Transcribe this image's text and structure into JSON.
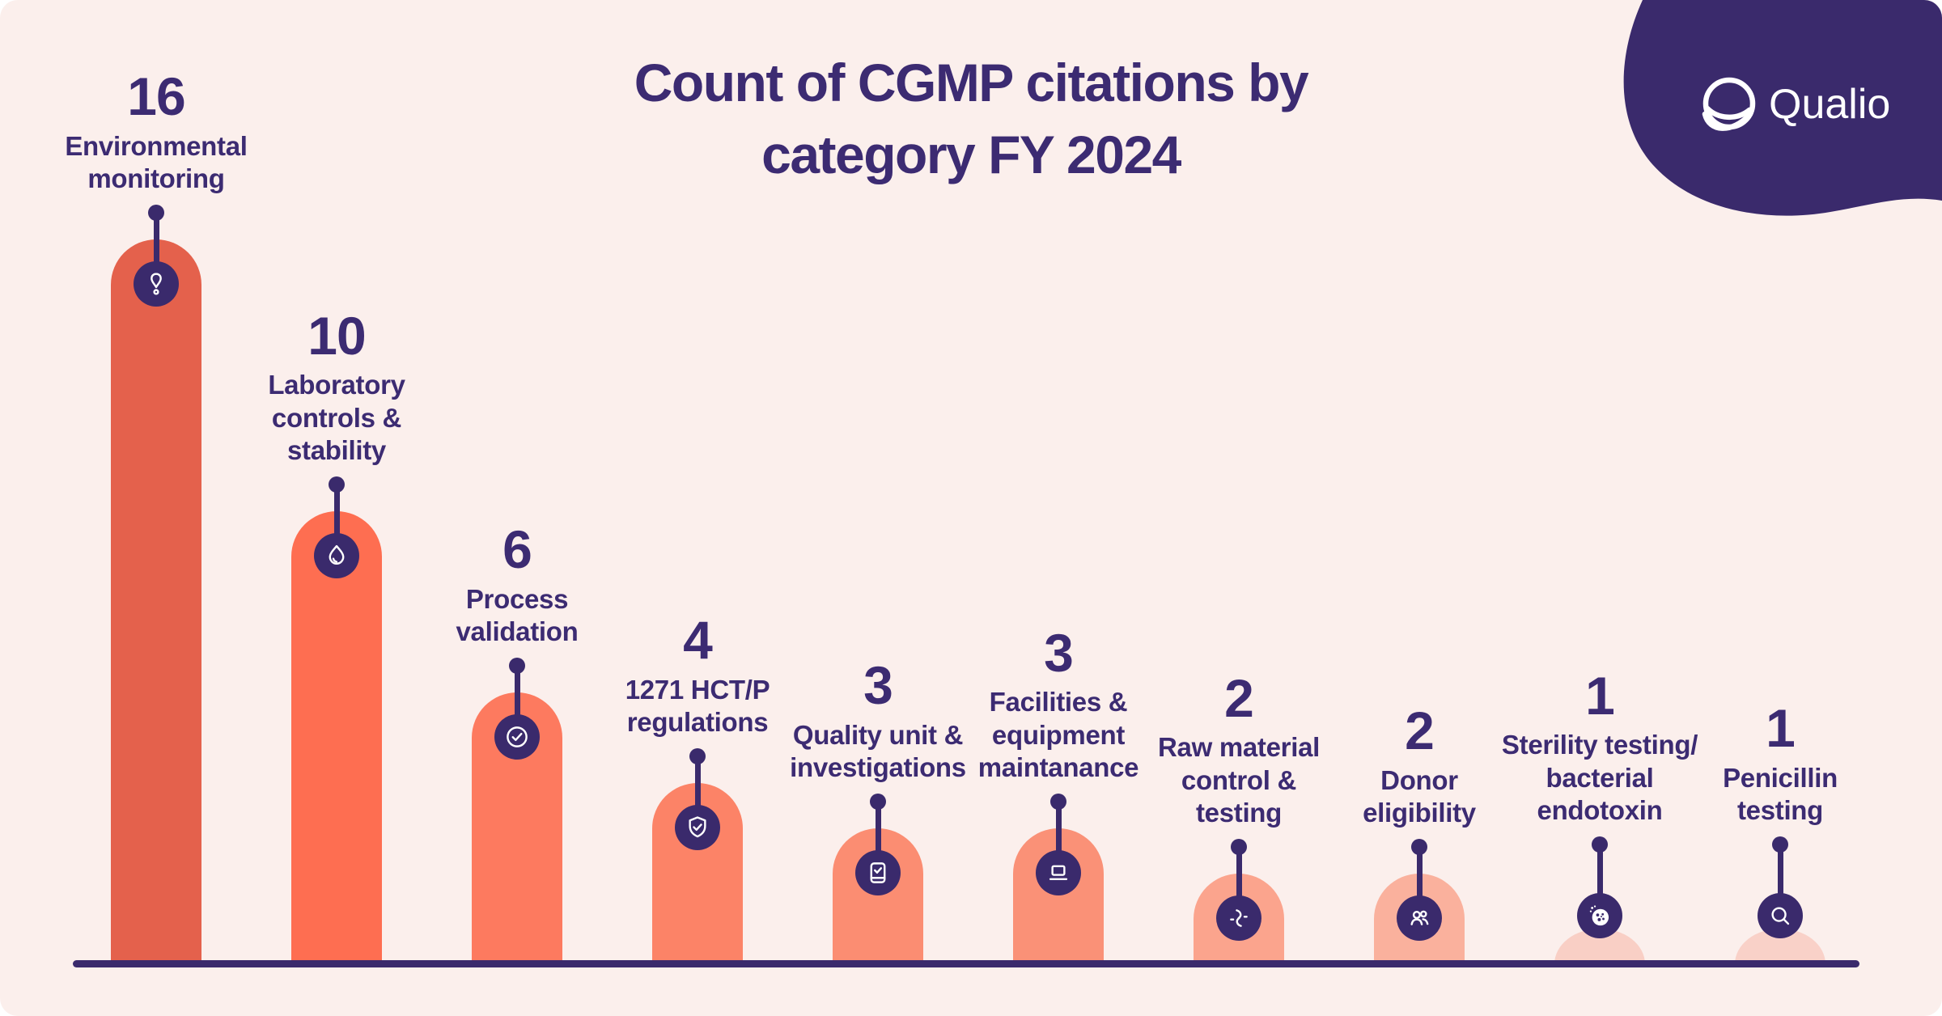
{
  "background_color": "#FBEFEC",
  "accent_purple": "#3A2A6C",
  "title_color": "#3C2B72",
  "header": {
    "title": "Count of CGMP citations by\ncategory FY 2024"
  },
  "logo": {
    "brand": "Qualio",
    "blob_color": "#3A2A6C",
    "text_color": "#FFFFFF"
  },
  "axis": {
    "color": "#3A2A6C"
  },
  "chart_data": {
    "type": "bar",
    "title": "Count of CGMP citations by category FY 2024",
    "xlabel": "",
    "ylabel": "",
    "ylim": [
      0,
      16
    ],
    "grid": false,
    "legend": false,
    "categories": [
      "Environmental monitoring",
      "Laboratory controls & stability",
      "Process validation",
      "1271 HCT/P regulations",
      "Quality unit & investigations",
      "Facilities & equipment maintanance",
      "Raw material control & testing",
      "Donor eligibility",
      "Sterility testing/ bacterial endotoxin",
      "Penicillin testing"
    ],
    "values": [
      16,
      10,
      6,
      4,
      3,
      3,
      2,
      2,
      1,
      1
    ],
    "points": [
      {
        "value": "16",
        "label": "Environmental\nmonitoring",
        "color": "#E4614C",
        "icon": "alert-icon"
      },
      {
        "value": "10",
        "label": "Laboratory\ncontrols &\nstability",
        "color": "#FE6E51",
        "icon": "droplet-icon"
      },
      {
        "value": "6",
        "label": "Process\nvalidation",
        "color": "#FD7A5F",
        "icon": "check-circle-icon"
      },
      {
        "value": "4",
        "label": "1271 HCT/P\nregulations",
        "color": "#FC8367",
        "icon": "shield-check-icon"
      },
      {
        "value": "3",
        "label": "Quality unit &\ninvestigations",
        "color": "#FB8D72",
        "icon": "document-check-icon"
      },
      {
        "value": "3",
        "label": "Facilities &\nequipment\nmaintanance",
        "color": "#FA9177",
        "icon": "laptop-icon"
      },
      {
        "value": "2",
        "label": "Raw material\ncontrol &\ntesting",
        "color": "#FBA48D",
        "icon": "dna-icon"
      },
      {
        "value": "2",
        "label": "Donor\neligibility",
        "color": "#FAB19D",
        "icon": "users-icon"
      },
      {
        "value": "1",
        "label": "Sterility testing/\nbacterial\nendotoxin",
        "color": "#F9CFC5",
        "icon": "petri-dish-icon"
      },
      {
        "value": "1",
        "label": "Penicillin\ntesting",
        "color": "#F9D1C8",
        "icon": "magnifier-icon"
      }
    ]
  }
}
